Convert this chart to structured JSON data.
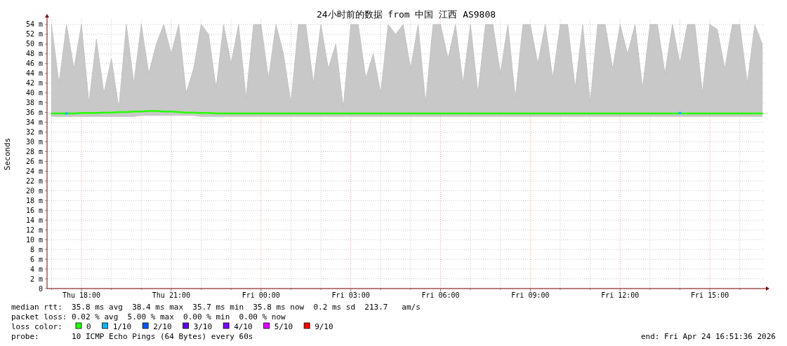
{
  "chart_data": {
    "type": "line",
    "title": "24小时前的数据 from 中国 江西 AS9808",
    "ylabel": "Seconds",
    "legend_title": "loss color:",
    "legend": "bottom",
    "grid": true,
    "ylim": [
      0,
      55
    ],
    "yticks": [
      0,
      {
        "value": 2,
        "label": "2 m"
      },
      {
        "value": 4,
        "label": "4 m"
      },
      {
        "value": 6,
        "label": "6 m"
      },
      {
        "value": 8,
        "label": "8 m"
      },
      {
        "value": 10,
        "label": "10 m"
      },
      {
        "value": 12,
        "label": "12 m"
      },
      {
        "value": 14,
        "label": "14 m"
      },
      {
        "value": 16,
        "label": "16 m"
      },
      {
        "value": 18,
        "label": "18 m"
      },
      {
        "value": 20,
        "label": "20 m"
      },
      {
        "value": 22,
        "label": "22 m"
      },
      {
        "value": 24,
        "label": "24 m"
      },
      {
        "value": 26,
        "label": "26 m"
      },
      {
        "value": 28,
        "label": "28 m"
      },
      {
        "value": 30,
        "label": "30 m"
      },
      {
        "value": 32,
        "label": "32 m"
      },
      {
        "value": 34,
        "label": "34 m"
      },
      {
        "value": 36,
        "label": "36 m"
      },
      {
        "value": 38,
        "label": "38 m"
      },
      {
        "value": 40,
        "label": "40 m"
      },
      {
        "value": 42,
        "label": "42 m"
      },
      {
        "value": 44,
        "label": "44 m"
      },
      {
        "value": 46,
        "label": "46 m"
      },
      {
        "value": 48,
        "label": "48 m"
      },
      {
        "value": 50,
        "label": "50 m"
      },
      {
        "value": 52,
        "label": "52 m"
      },
      {
        "value": 54,
        "label": "54 m"
      }
    ],
    "xlim": [
      "2026-04-23T16:51",
      "2026-04-24T16:51"
    ],
    "xticks": [
      {
        "value": "2026-04-23T17:00",
        "label": null
      },
      {
        "value": "2026-04-23T18:00",
        "label": "Thu 18:00"
      },
      {
        "value": "2026-04-23T19:00",
        "label": null
      },
      {
        "value": "2026-04-23T20:00",
        "label": null
      },
      {
        "value": "2026-04-23T21:00",
        "label": "Thu 21:00"
      },
      {
        "value": "2026-04-23T22:00",
        "label": null
      },
      {
        "value": "2026-04-23T23:00",
        "label": null
      },
      {
        "value": "2026-04-24T00:00",
        "label": "Fri 00:00"
      },
      {
        "value": "2026-04-24T01:00",
        "label": null
      },
      {
        "value": "2026-04-24T02:00",
        "label": null
      },
      {
        "value": "2026-04-24T03:00",
        "label": "Fri 03:00"
      },
      {
        "value": "2026-04-24T04:00",
        "label": null
      },
      {
        "value": "2026-04-24T05:00",
        "label": null
      },
      {
        "value": "2026-04-24T06:00",
        "label": "Fri 06:00"
      },
      {
        "value": "2026-04-24T07:00",
        "label": null
      },
      {
        "value": "2026-04-24T08:00",
        "label": null
      },
      {
        "value": "2026-04-24T09:00",
        "label": "Fri 09:00"
      },
      {
        "value": "2026-04-24T10:00",
        "label": null
      },
      {
        "value": "2026-04-24T11:00",
        "label": null
      },
      {
        "value": "2026-04-24T12:00",
        "label": "Fri 12:00"
      },
      {
        "value": "2026-04-24T13:00",
        "label": null
      },
      {
        "value": "2026-04-24T14:00",
        "label": null
      },
      {
        "value": "2026-04-24T15:00",
        "label": "Fri 15:00"
      },
      {
        "value": "2026-04-24T16:00",
        "label": null
      }
    ],
    "annotations": [
      "median rtt:  35.8 ms avg  38.4 ms max  35.7 ms min  35.8 ms now  0.2 ms sd  213.7   am/s",
      "packet loss: 0.02 % avg  5.00 % max  0.00 % min  0.00 % now",
      "probe:       10 ICMP Echo Pings (64 Bytes) every 60s",
      "end: Fri Apr 24 16:51:36 2026"
    ],
    "series": [
      {
        "name": "0",
        "color": "#26ff00",
        "x": [
          "2026-04-23T17:00",
          "2026-04-23T17:15",
          "2026-04-23T17:30",
          "2026-04-23T17:45",
          "2026-04-23T18:00",
          "2026-04-23T18:15",
          "2026-04-23T18:30",
          "2026-04-23T18:45",
          "2026-04-23T19:00",
          "2026-04-23T19:15",
          "2026-04-23T19:30",
          "2026-04-23T19:45",
          "2026-04-23T20:00",
          "2026-04-23T20:15",
          "2026-04-23T20:30",
          "2026-04-23T20:45",
          "2026-04-23T21:00",
          "2026-04-23T21:15",
          "2026-04-23T21:30",
          "2026-04-23T21:45",
          "2026-04-23T22:00",
          "2026-04-23T22:15",
          "2026-04-23T22:30",
          "2026-04-23T22:45",
          "2026-04-23T23:00",
          "2026-04-23T23:15",
          "2026-04-23T23:30",
          "2026-04-23T23:45",
          "2026-04-24T00:00",
          "2026-04-24T00:15",
          "2026-04-24T00:30",
          "2026-04-24T00:45",
          "2026-04-24T01:00",
          "2026-04-24T01:15",
          "2026-04-24T01:30",
          "2026-04-24T01:45",
          "2026-04-24T02:00",
          "2026-04-24T02:15",
          "2026-04-24T02:30",
          "2026-04-24T02:45",
          "2026-04-24T03:00",
          "2026-04-24T03:15",
          "2026-04-24T03:30",
          "2026-04-24T03:45",
          "2026-04-24T04:00",
          "2026-04-24T04:15",
          "2026-04-24T04:30",
          "2026-04-24T04:45",
          "2026-04-24T05:00",
          "2026-04-24T05:15",
          "2026-04-24T05:30",
          "2026-04-24T05:45",
          "2026-04-24T06:00",
          "2026-04-24T06:15",
          "2026-04-24T06:30",
          "2026-04-24T06:45",
          "2026-04-24T07:00",
          "2026-04-24T07:15",
          "2026-04-24T07:30",
          "2026-04-24T07:45",
          "2026-04-24T08:00",
          "2026-04-24T08:15",
          "2026-04-24T08:30",
          "2026-04-24T08:45",
          "2026-04-24T09:00",
          "2026-04-24T09:15",
          "2026-04-24T09:30",
          "2026-04-24T09:45",
          "2026-04-24T10:00",
          "2026-04-24T10:15",
          "2026-04-24T10:30",
          "2026-04-24T10:45",
          "2026-04-24T11:00",
          "2026-04-24T11:15",
          "2026-04-24T11:30",
          "2026-04-24T11:45",
          "2026-04-24T12:00",
          "2026-04-24T12:15",
          "2026-04-24T12:30",
          "2026-04-24T12:45",
          "2026-04-24T13:00",
          "2026-04-24T13:15",
          "2026-04-24T13:30",
          "2026-04-24T13:45",
          "2026-04-24T14:00",
          "2026-04-24T14:15",
          "2026-04-24T14:30",
          "2026-04-24T14:45",
          "2026-04-24T15:00",
          "2026-04-24T15:15",
          "2026-04-24T15:30",
          "2026-04-24T15:45",
          "2026-04-24T16:00",
          "2026-04-24T16:15",
          "2026-04-24T16:30",
          "2026-04-24T16:45"
        ],
        "values": [
          35.8,
          35.8,
          35.8,
          35.8,
          35.9,
          35.9,
          35.9,
          36.0,
          36.0,
          36.1,
          36.1,
          36.2,
          36.2,
          36.3,
          36.3,
          36.2,
          36.2,
          36.1,
          36.0,
          36.0,
          35.9,
          35.9,
          35.8,
          35.8,
          35.8,
          35.8,
          35.8,
          35.8,
          35.8,
          35.8,
          35.8,
          35.8,
          35.8,
          35.8,
          35.8,
          35.8,
          35.8,
          35.8,
          35.8,
          35.8,
          35.8,
          35.8,
          35.8,
          35.8,
          35.8,
          35.8,
          35.8,
          35.8,
          35.8,
          35.8,
          35.8,
          35.8,
          35.8,
          35.8,
          35.8,
          35.8,
          35.8,
          35.8,
          35.8,
          35.8,
          35.8,
          35.8,
          35.8,
          35.8,
          35.8,
          35.8,
          35.8,
          35.8,
          35.8,
          35.8,
          35.8,
          35.8,
          35.8,
          35.8,
          35.8,
          35.8,
          35.8,
          35.8,
          35.8,
          35.8,
          35.8,
          35.8,
          35.8,
          35.8,
          35.8,
          35.8,
          35.8,
          35.8,
          35.8,
          35.8,
          35.8,
          35.8,
          35.8,
          35.8,
          35.8,
          35.8
        ],
        "lower": [
          35.2,
          35.2,
          35.2,
          35.2,
          35.2,
          35.2,
          35.2,
          35.2,
          35.2,
          35.2,
          35.2,
          35.2,
          35.4,
          35.4,
          35.4,
          35.4,
          35.4,
          35.4,
          35.4,
          35.4,
          35.2,
          35.2,
          35.2,
          35.2,
          35.2,
          35.2,
          35.2,
          35.2,
          35.2,
          35.2,
          35.2,
          35.2,
          35.2,
          35.2,
          35.2,
          35.2,
          35.2,
          35.2,
          35.2,
          35.2,
          35.2,
          35.2,
          35.2,
          35.2,
          35.2,
          35.2,
          35.2,
          35.2,
          35.2,
          35.2,
          35.2,
          35.2,
          35.2,
          35.2,
          35.2,
          35.2,
          35.2,
          35.2,
          35.2,
          35.2,
          35.2,
          35.2,
          35.2,
          35.2,
          35.2,
          35.2,
          35.2,
          35.2,
          35.2,
          35.2,
          35.2,
          35.2,
          35.2,
          35.2,
          35.2,
          35.2,
          35.2,
          35.2,
          35.2,
          35.2,
          35.2,
          35.2,
          35.2,
          35.2,
          35.2,
          35.2,
          35.2,
          35.2,
          35.2,
          35.2,
          35.2,
          35.2,
          35.2,
          35.2,
          35.2,
          35.2
        ],
        "upper": [
          54,
          42,
          54,
          45,
          54,
          38,
          51,
          40,
          47,
          37,
          54,
          42,
          54,
          44,
          50,
          54,
          48,
          54,
          40,
          45,
          54,
          52,
          41,
          54,
          46,
          54,
          39,
          54,
          54,
          43,
          54,
          48,
          38,
          54,
          54,
          42,
          54,
          45,
          50,
          37,
          54,
          54,
          43,
          48,
          40,
          54,
          52,
          54,
          45,
          54,
          38,
          54,
          54,
          47,
          54,
          42,
          54,
          40,
          54,
          54,
          44,
          54,
          39,
          54,
          54,
          46,
          54,
          43,
          54,
          54,
          41,
          54,
          38,
          54,
          54,
          45,
          54,
          48,
          54,
          41,
          54,
          54,
          44,
          54,
          46,
          54,
          54,
          40,
          54,
          53,
          45,
          54,
          54,
          42,
          54,
          50
        ]
      },
      {
        "name": "1/10",
        "color": "#00b8ff",
        "type": "scatter",
        "x": [
          "2026-04-23T17:30",
          "2026-04-24T14:00"
        ],
        "values": [
          35.8,
          35.9
        ]
      },
      {
        "name": "2/10",
        "color": "#0059ff",
        "type": "scatter"
      },
      {
        "name": "3/10",
        "color": "#5e00ff",
        "type": "scatter"
      },
      {
        "name": "4/10",
        "color": "#7e00ff",
        "type": "scatter"
      },
      {
        "name": "5/10",
        "color": "#dd00ff",
        "type": "scatter"
      },
      {
        "name": "9/10",
        "color": "#ff0000",
        "type": "scatter"
      }
    ]
  }
}
